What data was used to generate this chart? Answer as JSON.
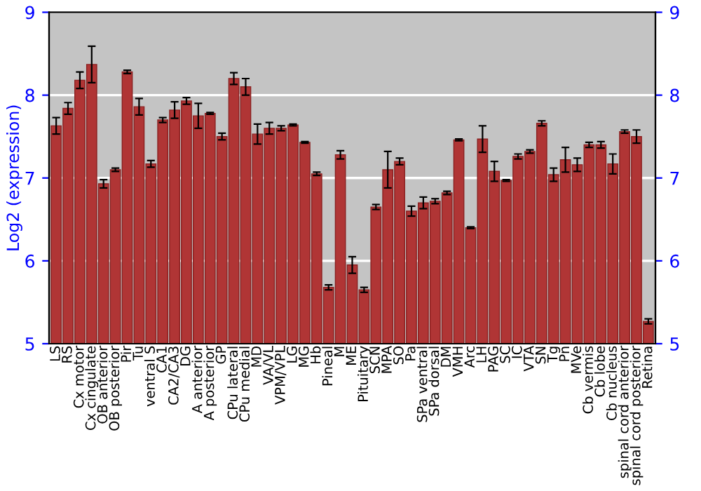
{
  "chart_data": {
    "type": "bar",
    "ylabel": "Log2 (expression)",
    "categories": [
      "LS",
      "RS",
      "Cx motor",
      "Cx cingulate",
      "OB anterior",
      "OB posterior",
      "Pir",
      "Tu",
      "ventral S",
      "CA1",
      "CA2/CA3",
      "DG",
      "A anterior",
      "A posterior",
      "GP",
      "CPu lateral",
      "CPu medial",
      "MD",
      "VA/VL",
      "VPM/VPL",
      "LG",
      "MG",
      "Hb",
      "Pineal",
      "M",
      "ME",
      "Pituitary",
      "SCN",
      "MPA",
      "SO",
      "Pa",
      "SPa ventral",
      "SPa dorsal",
      "DM",
      "VMH",
      "Arc",
      "LH",
      "PAG",
      "SC",
      "IC",
      "VTA",
      "SN",
      "Tg",
      "Pn",
      "MVe",
      "Cb vermis",
      "Cb lobe",
      "Cb nucleus",
      "spinal cord anterior",
      "spinal cord posterior",
      "Retina"
    ],
    "values": [
      7.63,
      7.84,
      8.18,
      8.37,
      6.93,
      7.1,
      8.28,
      7.86,
      7.17,
      7.7,
      7.82,
      7.93,
      7.75,
      7.78,
      7.5,
      8.2,
      8.1,
      7.53,
      7.6,
      7.6,
      7.64,
      7.43,
      7.05,
      5.68,
      7.28,
      5.95,
      5.65,
      6.65,
      7.1,
      7.2,
      6.6,
      6.7,
      6.72,
      6.82,
      7.46,
      6.4,
      7.47,
      7.08,
      6.97,
      7.26,
      7.32,
      7.66,
      7.04,
      7.22,
      7.16,
      7.4,
      7.4,
      7.17,
      7.56,
      7.5,
      5.27
    ],
    "errors": [
      0.1,
      0.07,
      0.1,
      0.22,
      0.05,
      0.02,
      0.02,
      0.1,
      0.04,
      0.03,
      0.1,
      0.04,
      0.15,
      0.01,
      0.04,
      0.07,
      0.1,
      0.12,
      0.07,
      0.03,
      0.01,
      0.01,
      0.02,
      0.03,
      0.05,
      0.1,
      0.03,
      0.03,
      0.22,
      0.04,
      0.06,
      0.07,
      0.03,
      0.02,
      0.01,
      0.01,
      0.16,
      0.12,
      0.01,
      0.03,
      0.02,
      0.03,
      0.08,
      0.15,
      0.08,
      0.03,
      0.04,
      0.12,
      0.02,
      0.08,
      0.03
    ],
    "color": "#b03535",
    "ylim": [
      5,
      9
    ],
    "yticks": [
      5,
      6,
      7,
      8,
      9
    ],
    "y2lim": [
      5,
      9
    ],
    "y2ticks": [
      5,
      6,
      7,
      8,
      9
    ],
    "grid": "y"
  }
}
